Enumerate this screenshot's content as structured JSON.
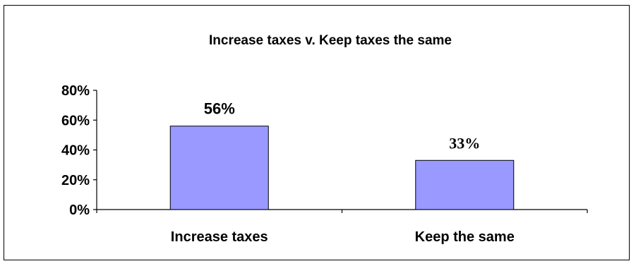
{
  "chart_data": {
    "type": "bar",
    "title": "Increase taxes v. Keep taxes the same",
    "xlabel": "",
    "ylabel": "",
    "categories": [
      "Increase taxes",
      "Keep the same"
    ],
    "values": [
      0.56,
      0.33
    ],
    "data_labels": [
      "56%",
      "33%"
    ],
    "ylim": [
      0,
      0.8
    ],
    "y_ticks": [
      0,
      0.2,
      0.4,
      0.6,
      0.8
    ],
    "y_tick_labels": [
      "0%",
      "20%",
      "40%",
      "60%",
      "80%"
    ],
    "bar_color": "#9999ff",
    "bar_edge_color": "#000000",
    "grid": false,
    "legend": "none"
  }
}
